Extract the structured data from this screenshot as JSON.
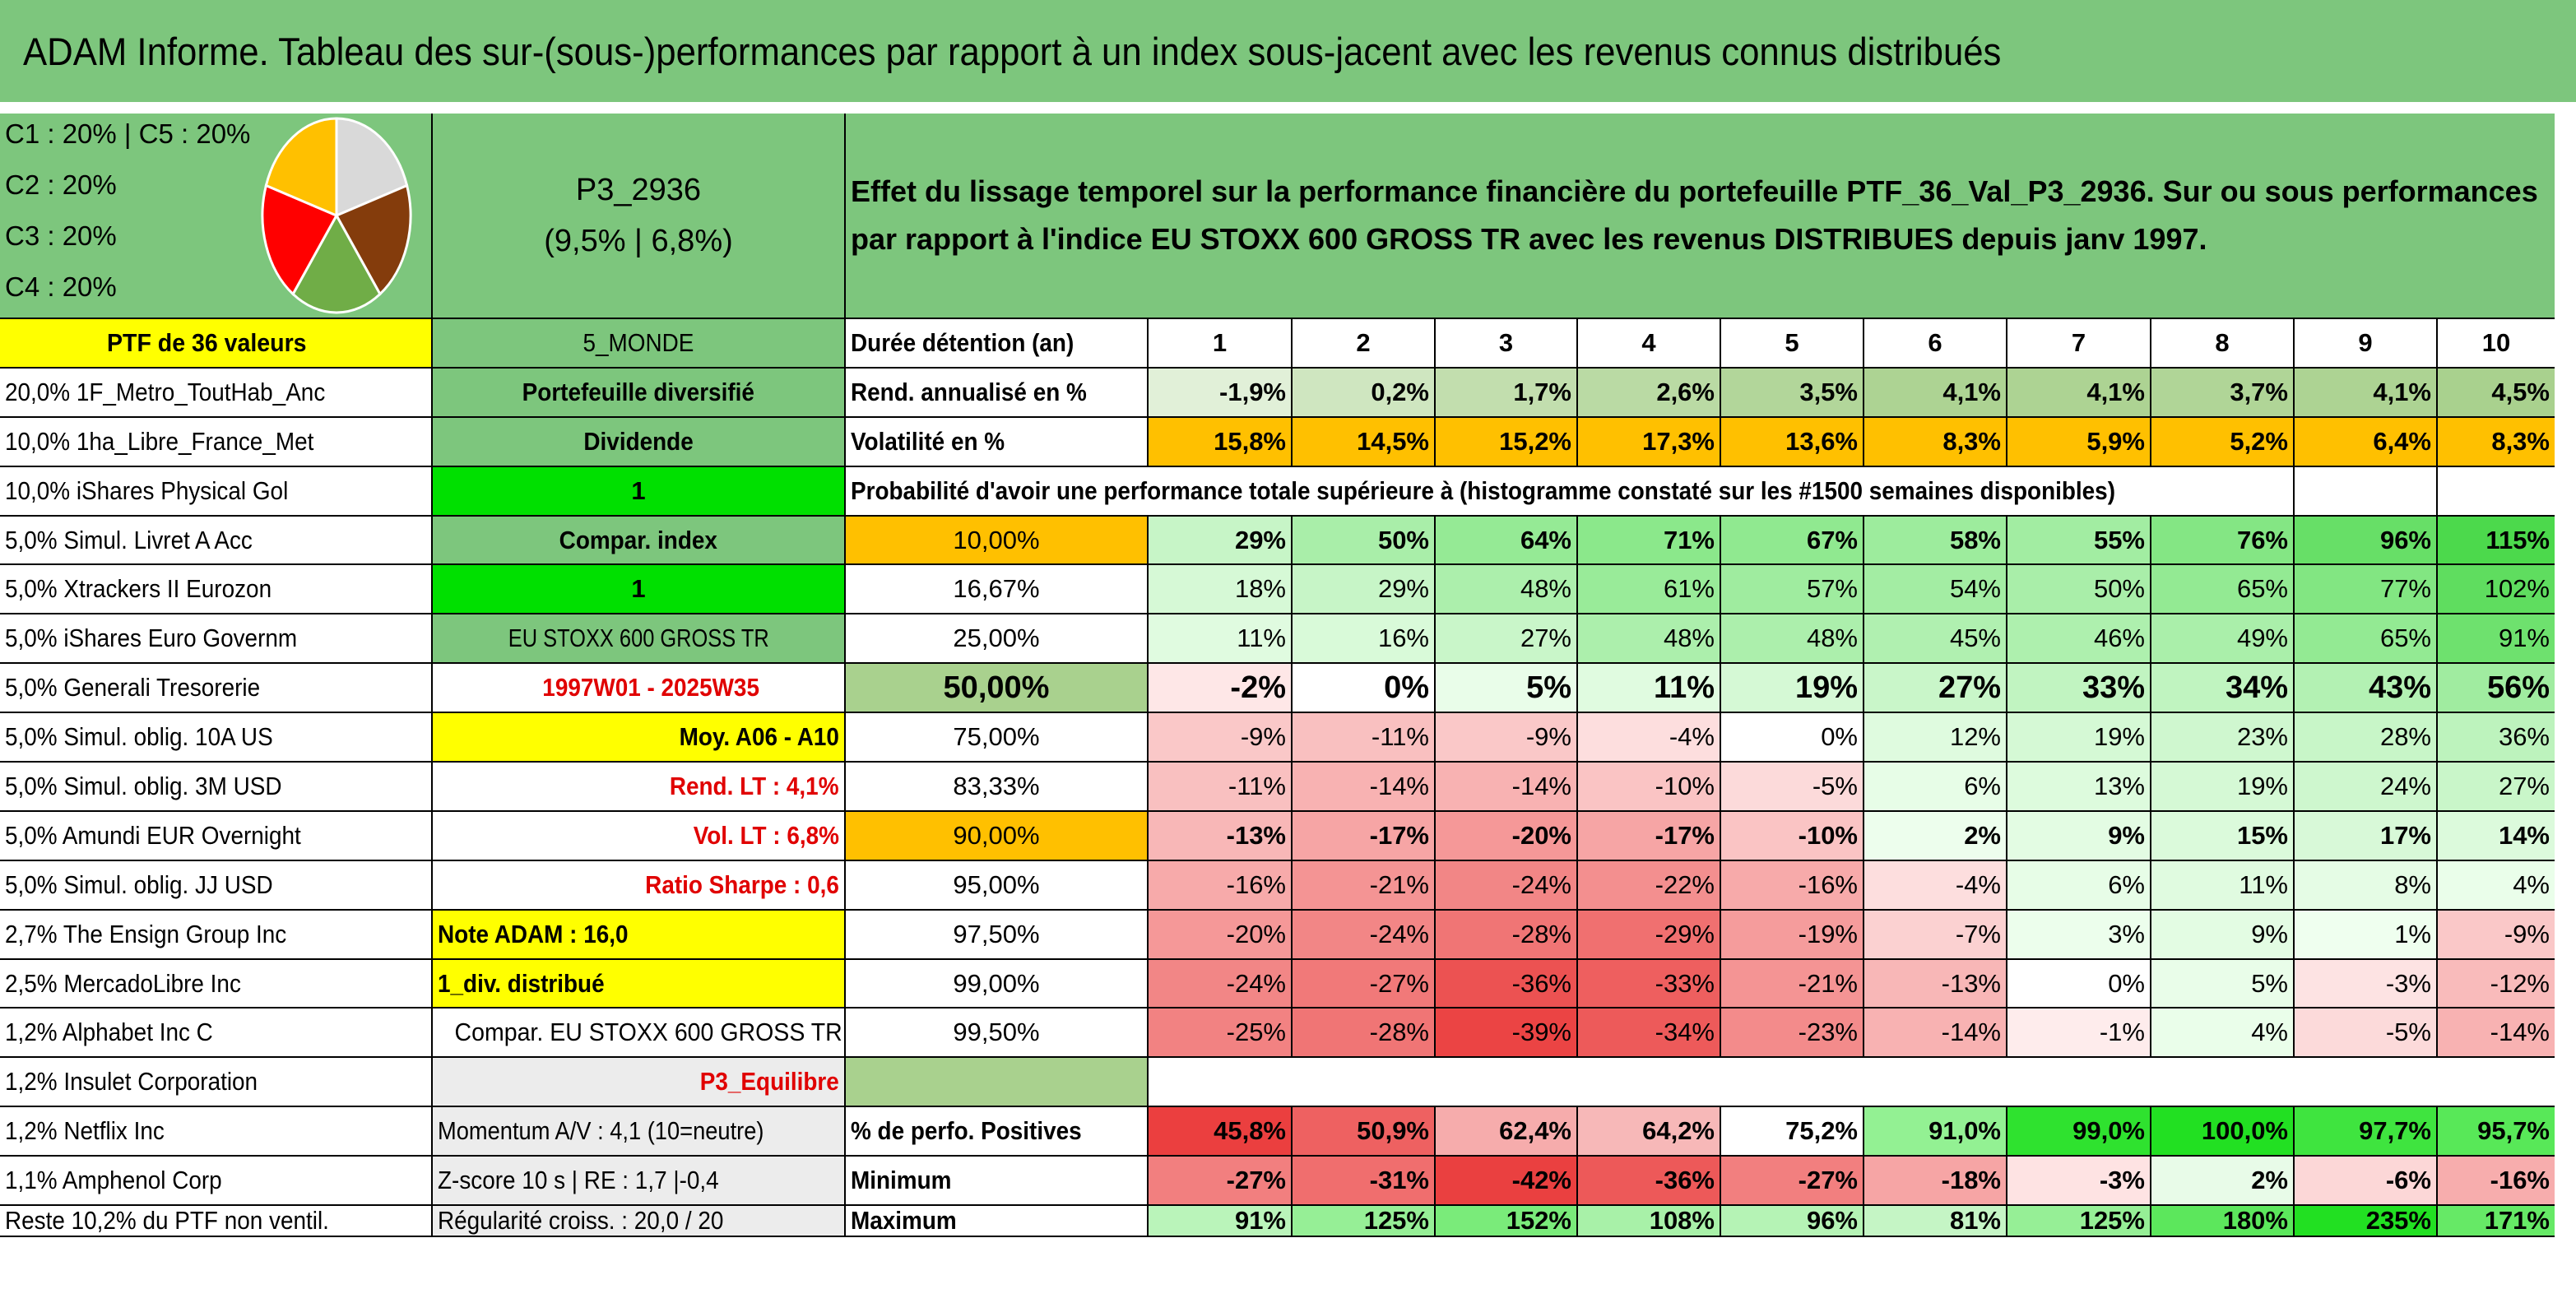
{
  "title": "ADAM Informe. Tableau des sur-(sous-)performances par rapport à un index sous-jacent avec les revenus connus distribués",
  "legend": {
    "lines": [
      "C1 : 20% | C5 : 20%",
      "C2 : 20%",
      "C3 : 20%",
      "C4 : 20%"
    ],
    "pie_colors": [
      "#d9d9d9",
      "#843c0c",
      "#70ad47",
      "#ff0000",
      "#ffc000"
    ]
  },
  "portfolio": {
    "code": "P3_2936",
    "perf": "(9,5% | 6,8%)"
  },
  "description": "Effet du lissage temporel sur la performance financière du portefeuille PTF_36_Val_P3_2936. Sur ou sous performances par rapport à l'indice EU STOXX 600 GROSS TR avec les revenus DISTRIBUES depuis janv 1997.",
  "colA": [
    "PTF de 36 valeurs",
    "20,0% 1F_Metro_ToutHab_Anc",
    "10,0% 1ha_Libre_France_Met",
    "10,0% iShares Physical Gol",
    "5,0% Simul. Livret A Acc",
    "5,0% Xtrackers II Eurozon",
    "5,0% iShares Euro Governm",
    "5,0% Generali Tresorerie",
    "5,0% Simul. oblig. 10A US",
    "5,0% Simul. oblig. 3M USD",
    "5,0% Amundi EUR Overnight",
    "5,0% Simul. oblig. JJ USD",
    "2,7% The Ensign Group Inc",
    "2,5% MercadoLibre Inc",
    "1,2% Alphabet Inc C",
    "1,2% Insulet Corporation",
    "1,2% Netflix Inc",
    "1,1% Amphenol Corp",
    "Reste 10,2% du PTF non ventil."
  ],
  "colB": [
    "5_MONDE",
    "Portefeuille diversifié",
    "Dividende",
    "1",
    "Compar. index",
    "1",
    "EU STOXX 600 GROSS TR",
    "1997W01 - 2025W35",
    "Moy. A06 - A10",
    "Rend. LT : 4,1%",
    "Vol. LT : 6,8%",
    "Ratio Sharpe : 0,6",
    "Note ADAM : 16,0",
    "1_div. distribué",
    "Compar. EU STOXX 600 GROSS TR",
    "P3_Equilibre",
    "Momentum A/V : 4,1 (10=neutre)",
    "Z-score 10 s | RE : 1,7 |-0,4",
    "Régularité croiss. : 20,0 / 20"
  ],
  "header_row": {
    "label": "Durée détention (an)",
    "years": [
      "1",
      "2",
      "3",
      "4",
      "5",
      "6",
      "7",
      "8",
      "9",
      "10"
    ]
  },
  "rend_row": {
    "label": "Rend. annualisé en %",
    "values": [
      "-1,9%",
      "0,2%",
      "1,7%",
      "2,6%",
      "3,5%",
      "4,1%",
      "4,1%",
      "3,7%",
      "4,1%",
      "4,5%"
    ]
  },
  "vol_row": {
    "label": "Volatilité en %",
    "values": [
      "15,8%",
      "14,5%",
      "15,2%",
      "17,3%",
      "13,6%",
      "8,3%",
      "5,9%",
      "5,2%",
      "6,4%",
      "8,3%"
    ]
  },
  "prob_caption": "Probabilité d'avoir une performance totale supérieure à (histogramme constaté sur les #1500 semaines disponibles)",
  "prob_rows": [
    {
      "p": "10,00%",
      "values": [
        "29%",
        "50%",
        "64%",
        "71%",
        "67%",
        "58%",
        "55%",
        "76%",
        "96%",
        "115%"
      ]
    },
    {
      "p": "16,67%",
      "values": [
        "18%",
        "29%",
        "48%",
        "61%",
        "57%",
        "54%",
        "50%",
        "65%",
        "77%",
        "102%"
      ]
    },
    {
      "p": "25,00%",
      "values": [
        "11%",
        "16%",
        "27%",
        "48%",
        "48%",
        "45%",
        "46%",
        "49%",
        "65%",
        "91%"
      ]
    },
    {
      "p": "50,00%",
      "values": [
        "-2%",
        "0%",
        "5%",
        "11%",
        "19%",
        "27%",
        "33%",
        "34%",
        "43%",
        "56%"
      ]
    },
    {
      "p": "75,00%",
      "values": [
        "-9%",
        "-11%",
        "-9%",
        "-4%",
        "0%",
        "12%",
        "19%",
        "23%",
        "28%",
        "36%"
      ]
    },
    {
      "p": "83,33%",
      "values": [
        "-11%",
        "-14%",
        "-14%",
        "-10%",
        "-5%",
        "6%",
        "13%",
        "19%",
        "24%",
        "27%"
      ]
    },
    {
      "p": "90,00%",
      "values": [
        "-13%",
        "-17%",
        "-20%",
        "-17%",
        "-10%",
        "2%",
        "9%",
        "15%",
        "17%",
        "14%"
      ]
    },
    {
      "p": "95,00%",
      "values": [
        "-16%",
        "-21%",
        "-24%",
        "-22%",
        "-16%",
        "-4%",
        "6%",
        "11%",
        "8%",
        "4%"
      ]
    },
    {
      "p": "97,50%",
      "values": [
        "-20%",
        "-24%",
        "-28%",
        "-29%",
        "-19%",
        "-7%",
        "3%",
        "9%",
        "1%",
        "-9%"
      ]
    },
    {
      "p": "99,00%",
      "values": [
        "-24%",
        "-27%",
        "-36%",
        "-33%",
        "-21%",
        "-13%",
        "0%",
        "5%",
        "-3%",
        "-12%"
      ]
    },
    {
      "p": "99,50%",
      "values": [
        "-25%",
        "-28%",
        "-39%",
        "-34%",
        "-23%",
        "-14%",
        "-1%",
        "4%",
        "-5%",
        "-14%"
      ]
    }
  ],
  "pos_row": {
    "label": "% de perfo. Positives",
    "values": [
      "45,8%",
      "50,9%",
      "62,4%",
      "64,2%",
      "75,2%",
      "91,0%",
      "99,0%",
      "100,0%",
      "97,7%",
      "95,7%"
    ]
  },
  "min_row": {
    "label": "Minimum",
    "values": [
      "-27%",
      "-31%",
      "-42%",
      "-36%",
      "-27%",
      "-18%",
      "-3%",
      "2%",
      "-6%",
      "-16%"
    ]
  },
  "max_row": {
    "label": "Maximum",
    "values": [
      "91%",
      "125%",
      "152%",
      "108%",
      "96%",
      "81%",
      "125%",
      "180%",
      "235%",
      "171%"
    ]
  }
}
